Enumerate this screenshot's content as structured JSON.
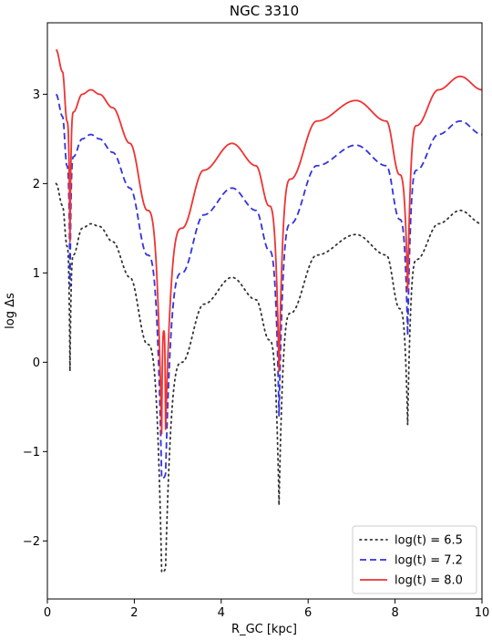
{
  "chart_data": {
    "type": "line",
    "title": "NGC 3310",
    "xlabel": "R_GC [kpc]",
    "ylabel": "log Δs",
    "xlim": [
      0,
      10
    ],
    "ylim": [
      -2.65,
      3.8
    ],
    "xticks": [
      0,
      2,
      4,
      6,
      8,
      10
    ],
    "yticks": [
      -2,
      -1,
      0,
      1,
      2,
      3
    ],
    "grid": false,
    "legend_position": "lower-right",
    "dips": [
      {
        "x": 0.52,
        "width": 0.012
      },
      {
        "x": 2.63,
        "width": 0.012
      },
      {
        "x": 2.72,
        "width": 0.012
      },
      {
        "x": 5.33,
        "width": 0.006
      },
      {
        "x": 8.29,
        "width": 0.006
      }
    ],
    "series": [
      {
        "name": "log(t) = 6.5",
        "color": "#333333",
        "style": "dotted",
        "x": [
          0.2,
          0.35,
          0.45,
          0.52,
          0.6,
          0.8,
          1.0,
          1.2,
          1.5,
          1.9,
          2.3,
          2.63,
          2.72,
          3.1,
          3.6,
          4.25,
          4.8,
          5.1,
          5.33,
          5.6,
          6.2,
          7.1,
          7.8,
          8.1,
          8.29,
          8.5,
          9.0,
          9.5,
          10.0
        ],
        "values": [
          2.0,
          1.75,
          1.3,
          -0.1,
          1.2,
          1.5,
          1.55,
          1.52,
          1.35,
          0.95,
          0.2,
          -2.35,
          -2.3,
          0.0,
          0.65,
          0.95,
          0.7,
          0.25,
          -1.6,
          0.55,
          1.2,
          1.43,
          1.2,
          0.6,
          -0.7,
          1.15,
          1.55,
          1.7,
          1.55
        ]
      },
      {
        "name": "log(t) = 7.2",
        "color": "#3333dd",
        "style": "dashed",
        "x": [
          0.2,
          0.35,
          0.45,
          0.52,
          0.6,
          0.8,
          1.0,
          1.2,
          1.5,
          1.9,
          2.3,
          2.63,
          2.72,
          3.1,
          3.6,
          4.25,
          4.8,
          5.1,
          5.33,
          5.6,
          6.2,
          7.1,
          7.8,
          8.1,
          8.29,
          8.5,
          9.0,
          9.5,
          10.0
        ],
        "values": [
          3.0,
          2.75,
          2.2,
          0.85,
          2.3,
          2.5,
          2.55,
          2.5,
          2.35,
          1.95,
          1.2,
          -1.3,
          -1.25,
          1.0,
          1.65,
          1.95,
          1.7,
          1.25,
          -0.6,
          1.55,
          2.2,
          2.43,
          2.2,
          1.6,
          0.3,
          2.15,
          2.55,
          2.7,
          2.55
        ]
      },
      {
        "name": "log(t) = 8.0",
        "color": "#ee3333",
        "style": "solid",
        "x": [
          0.2,
          0.35,
          0.45,
          0.52,
          0.6,
          0.8,
          1.0,
          1.2,
          1.5,
          1.9,
          2.3,
          2.63,
          2.68,
          2.72,
          3.1,
          3.6,
          4.25,
          4.8,
          5.1,
          5.33,
          5.6,
          6.2,
          7.1,
          7.8,
          8.1,
          8.29,
          8.5,
          9.0,
          9.5,
          10.0
        ],
        "values": [
          3.5,
          3.25,
          2.7,
          1.35,
          2.8,
          3.0,
          3.05,
          3.0,
          2.85,
          2.45,
          1.7,
          -0.8,
          0.35,
          -0.75,
          1.5,
          2.15,
          2.45,
          2.2,
          1.75,
          -0.1,
          2.05,
          2.7,
          2.93,
          2.7,
          2.1,
          0.8,
          2.65,
          3.05,
          3.2,
          3.05
        ]
      }
    ]
  }
}
